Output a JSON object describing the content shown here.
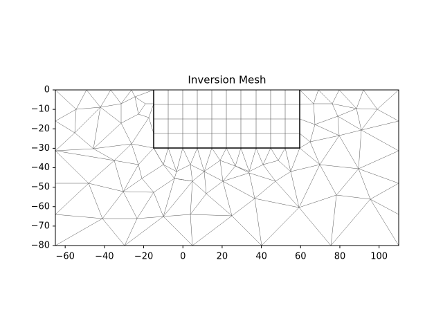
{
  "chart_data": {
    "type": "mesh",
    "title": "Inversion Mesh",
    "xlim": [
      -65,
      110
    ],
    "ylim": [
      -80,
      0
    ],
    "xticks": [
      {
        "value": -60,
        "label": "−60"
      },
      {
        "value": -40,
        "label": "−40"
      },
      {
        "value": -20,
        "label": "−20"
      },
      0,
      20,
      40,
      60,
      80,
      100
    ],
    "yticks": [
      0,
      {
        "value": -10,
        "label": "−10"
      },
      {
        "value": -20,
        "label": "−20"
      },
      {
        "value": -30,
        "label": "−30"
      },
      {
        "value": -40,
        "label": "−40"
      },
      {
        "value": -50,
        "label": "−50"
      },
      {
        "value": -60,
        "label": "−60"
      },
      {
        "value": -70,
        "label": "−70"
      },
      {
        "value": -80,
        "label": "−80"
      }
    ]
  }
}
